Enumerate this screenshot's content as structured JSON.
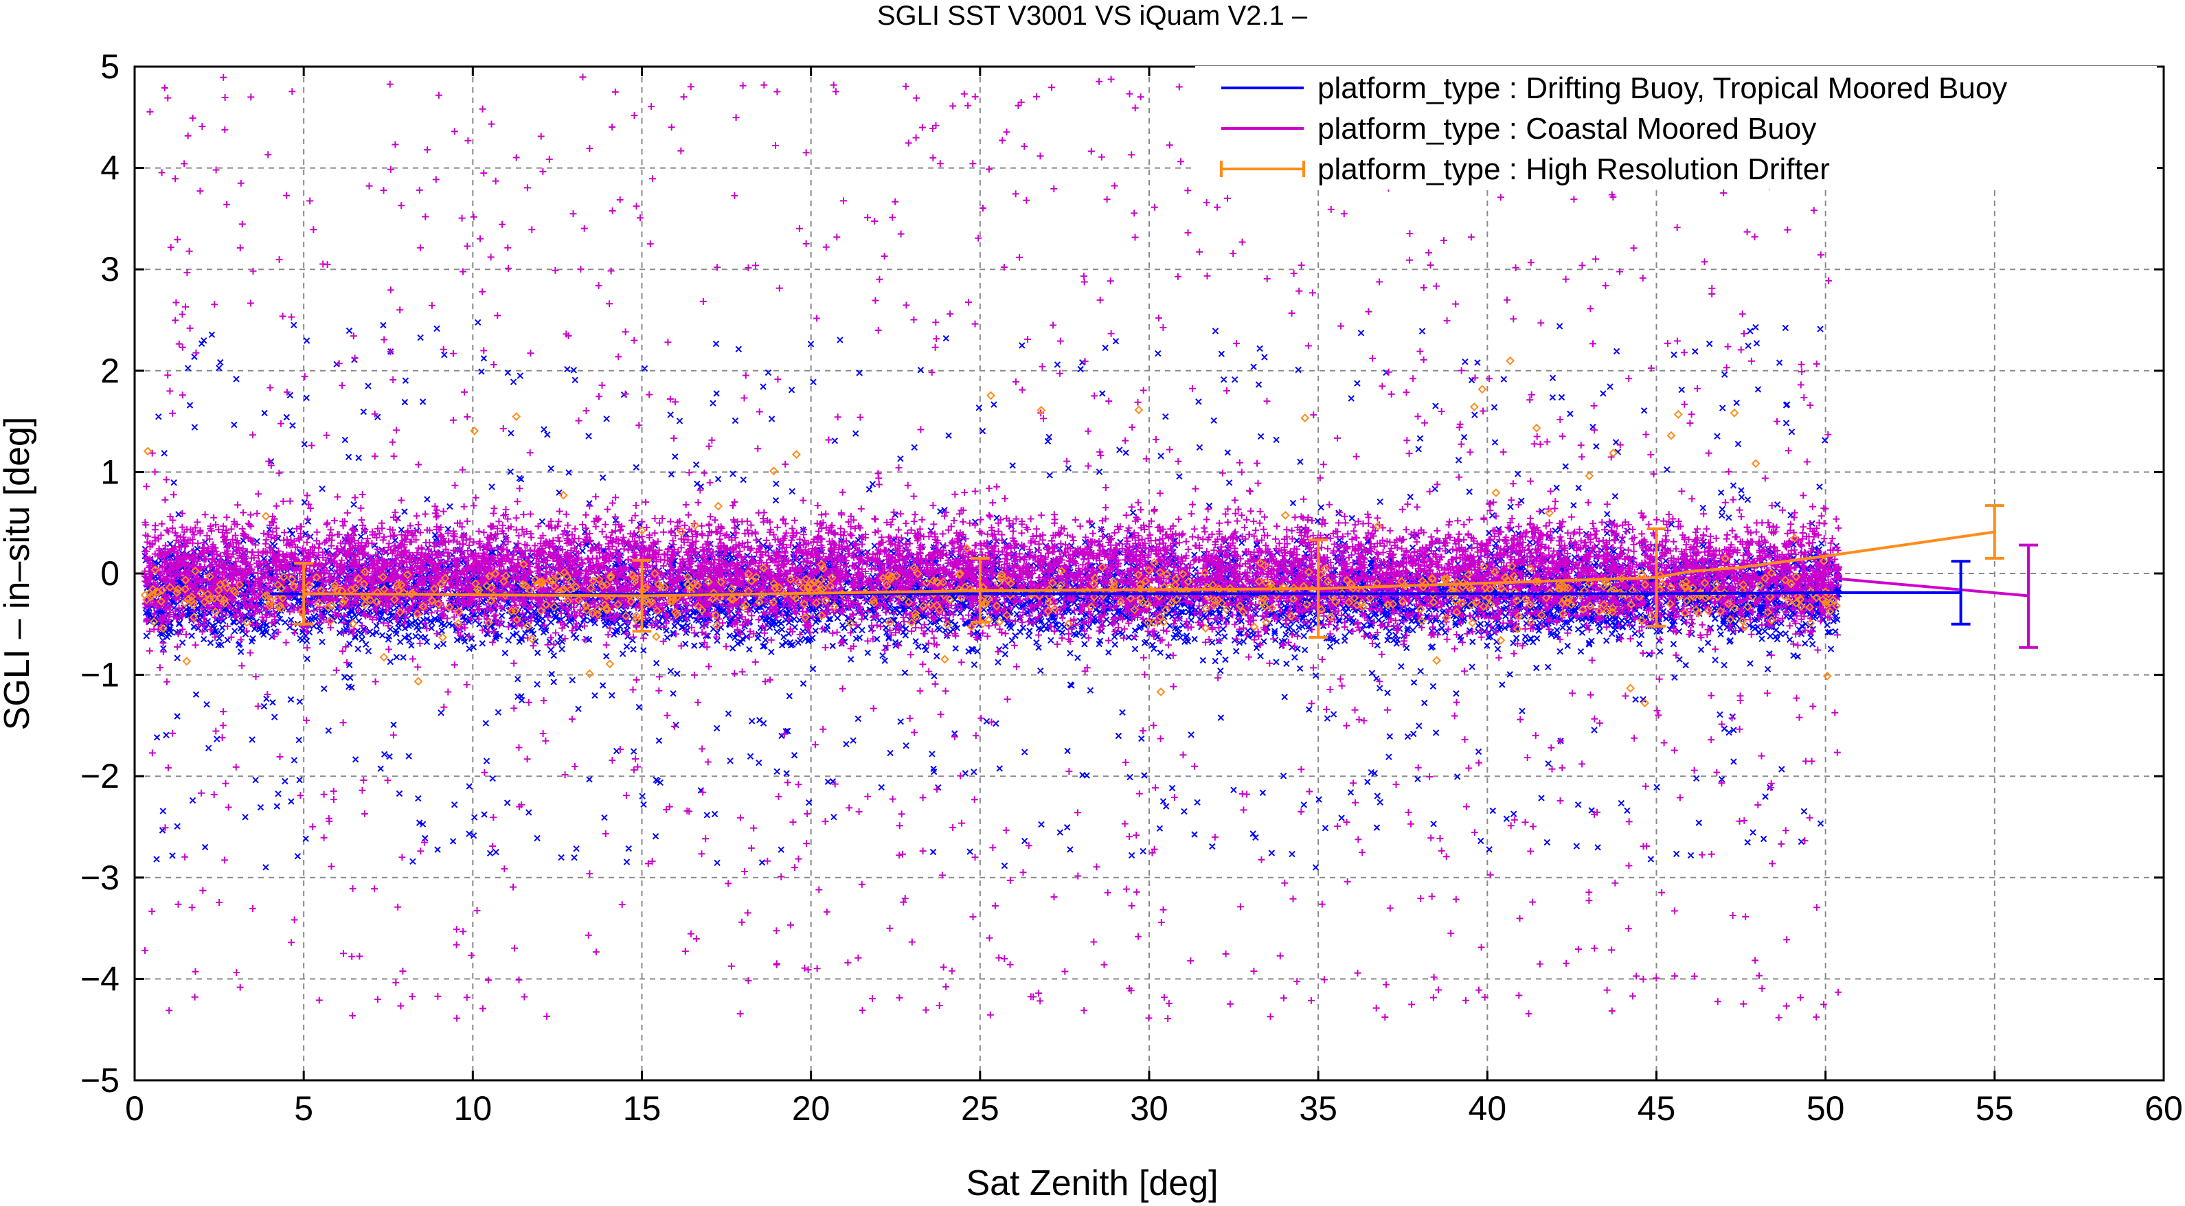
{
  "chart_data": {
    "type": "scatter",
    "title": "SGLI SST V3001 VS iQuam V2.1  –",
    "xlabel": "Sat Zenith [deg]",
    "ylabel": "SGLI – in–situ [deg]",
    "xlim": [
      0,
      60
    ],
    "ylim": [
      -5,
      5
    ],
    "x_ticks": [
      0,
      5,
      10,
      15,
      20,
      25,
      30,
      35,
      40,
      45,
      50,
      55,
      60
    ],
    "y_ticks": [
      -5,
      -4,
      -3,
      -2,
      -1,
      0,
      1,
      2,
      3,
      4,
      5
    ],
    "x_tick_labels": [
      "0",
      "5",
      "10",
      "15",
      "20",
      "25",
      "30",
      "35",
      "40",
      "45",
      "50",
      "55",
      "60"
    ],
    "y_tick_labels": [
      "−5",
      "−4",
      "−3",
      "−2",
      "−1",
      "0",
      "1",
      "2",
      "3",
      "4",
      "5"
    ],
    "grid": true,
    "legend_position": "top-right",
    "series": [
      {
        "name": "platform_type : Drifting Buoy, Tropical Moored Buoy",
        "color": "#0000ff",
        "marker": "x",
        "scatter_x_range": [
          0.3,
          50.4
        ],
        "scatter_core_range": [
          -0.9,
          0.5
        ],
        "scatter_outlier_range": [
          -2.9,
          2.5
        ],
        "mean_line": {
          "x": [
            4,
            10,
            20,
            30,
            40,
            45,
            50,
            54
          ],
          "y": [
            -0.2,
            -0.21,
            -0.2,
            -0.2,
            -0.2,
            -0.2,
            -0.19,
            -0.19
          ]
        },
        "errorbars": [
          {
            "x": 54,
            "mean": -0.19,
            "low": -0.5,
            "high": 0.12
          }
        ]
      },
      {
        "name": "platform_type : Coastal Moored Buoy",
        "color": "#cc00cc",
        "marker": "+",
        "scatter_x_range": [
          0.3,
          50.4
        ],
        "scatter_core_range": [
          -0.8,
          0.8
        ],
        "scatter_outlier_range": [
          -4.4,
          4.9
        ],
        "mean_line": {
          "x": [
            50.3,
            56
          ],
          "y": [
            -0.05,
            -0.22
          ]
        },
        "errorbars": [
          {
            "x": 56,
            "mean": -0.22,
            "low": -0.73,
            "high": 0.28
          }
        ]
      },
      {
        "name": "platform_type : High Resolution Drifter",
        "color": "#ff8c1a",
        "marker": "diamond",
        "scatter_x_range": [
          0.3,
          50.4
        ],
        "scatter_core_range": [
          -0.6,
          0.2
        ],
        "scatter_outlier_range": [
          -1.4,
          2.1
        ],
        "mean_line": {
          "x": [
            5,
            15,
            25,
            35,
            45,
            46,
            47.5,
            50.2,
            55
          ],
          "y": [
            -0.2,
            -0.22,
            -0.17,
            -0.15,
            -0.04,
            0.02,
            0.06,
            0.18,
            0.41
          ]
        },
        "errorbars": [
          {
            "x": 5,
            "mean": -0.2,
            "low": -0.5,
            "high": 0.1
          },
          {
            "x": 15,
            "mean": -0.22,
            "low": -0.57,
            "high": 0.13
          },
          {
            "x": 25,
            "mean": -0.17,
            "low": -0.48,
            "high": 0.15
          },
          {
            "x": 35,
            "mean": -0.15,
            "low": -0.63,
            "high": 0.33
          },
          {
            "x": 45,
            "mean": -0.04,
            "low": -0.52,
            "high": 0.44
          },
          {
            "x": 55,
            "mean": 0.41,
            "low": 0.15,
            "high": 0.67
          }
        ]
      }
    ]
  }
}
